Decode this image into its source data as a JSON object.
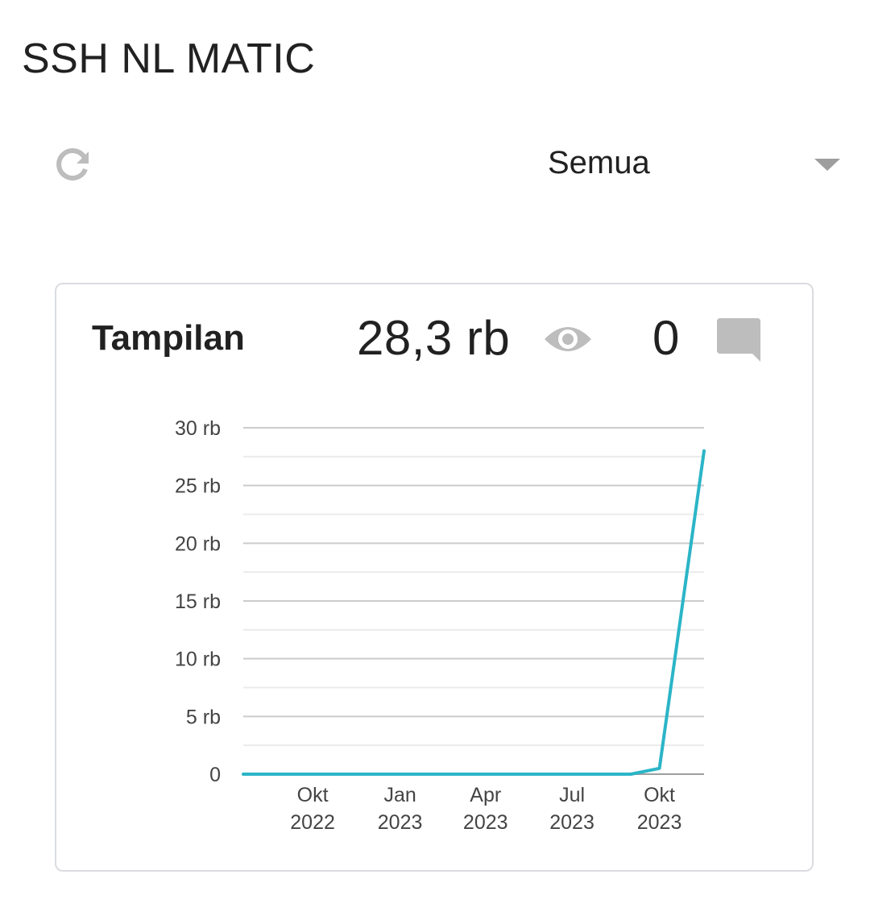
{
  "page": {
    "title": "SSH NL MATIC"
  },
  "toolbar": {
    "refresh_icon": "refresh-icon",
    "period_selected": "Semua",
    "dropdown_icon": "triangle-down-icon"
  },
  "card": {
    "title": "Tampilan",
    "views_value": "28,3 rb",
    "views_icon": "eye-icon",
    "comments_value": "0",
    "comments_icon": "comment-icon"
  },
  "colors": {
    "line": "#2bb5c7",
    "icon_gray": "#bdbdbd",
    "grid_major": "#cccccc",
    "grid_minor": "#ebebeb",
    "card_border": "#dadce0"
  },
  "chart_data": {
    "type": "line",
    "ylim": [
      0,
      30000
    ],
    "ytick_values": [
      0,
      5000,
      10000,
      15000,
      20000,
      25000,
      30000
    ],
    "ytick_labels": [
      "0",
      "5 rb",
      "10 rb",
      "15 rb",
      "20 rb",
      "25 rb",
      "30 rb"
    ],
    "xlim": [
      "2022-07-20",
      "2023-11-17"
    ],
    "xticks": [
      {
        "date": "2022-10-01",
        "line1": "Okt",
        "line2": "2022"
      },
      {
        "date": "2023-01-01",
        "line1": "Jan",
        "line2": "2023"
      },
      {
        "date": "2023-04-01",
        "line1": "Apr",
        "line2": "2023"
      },
      {
        "date": "2023-07-01",
        "line1": "Jul",
        "line2": "2023"
      },
      {
        "date": "2023-10-01",
        "line1": "Okt",
        "line2": "2023"
      }
    ],
    "series": [
      {
        "points": [
          {
            "x": "2022-07-20",
            "y": 0
          },
          {
            "x": "2023-09-01",
            "y": 0
          },
          {
            "x": "2023-10-01",
            "y": 500
          },
          {
            "x": "2023-11-17",
            "y": 28000
          }
        ]
      }
    ],
    "grid": true,
    "legend": "none"
  }
}
